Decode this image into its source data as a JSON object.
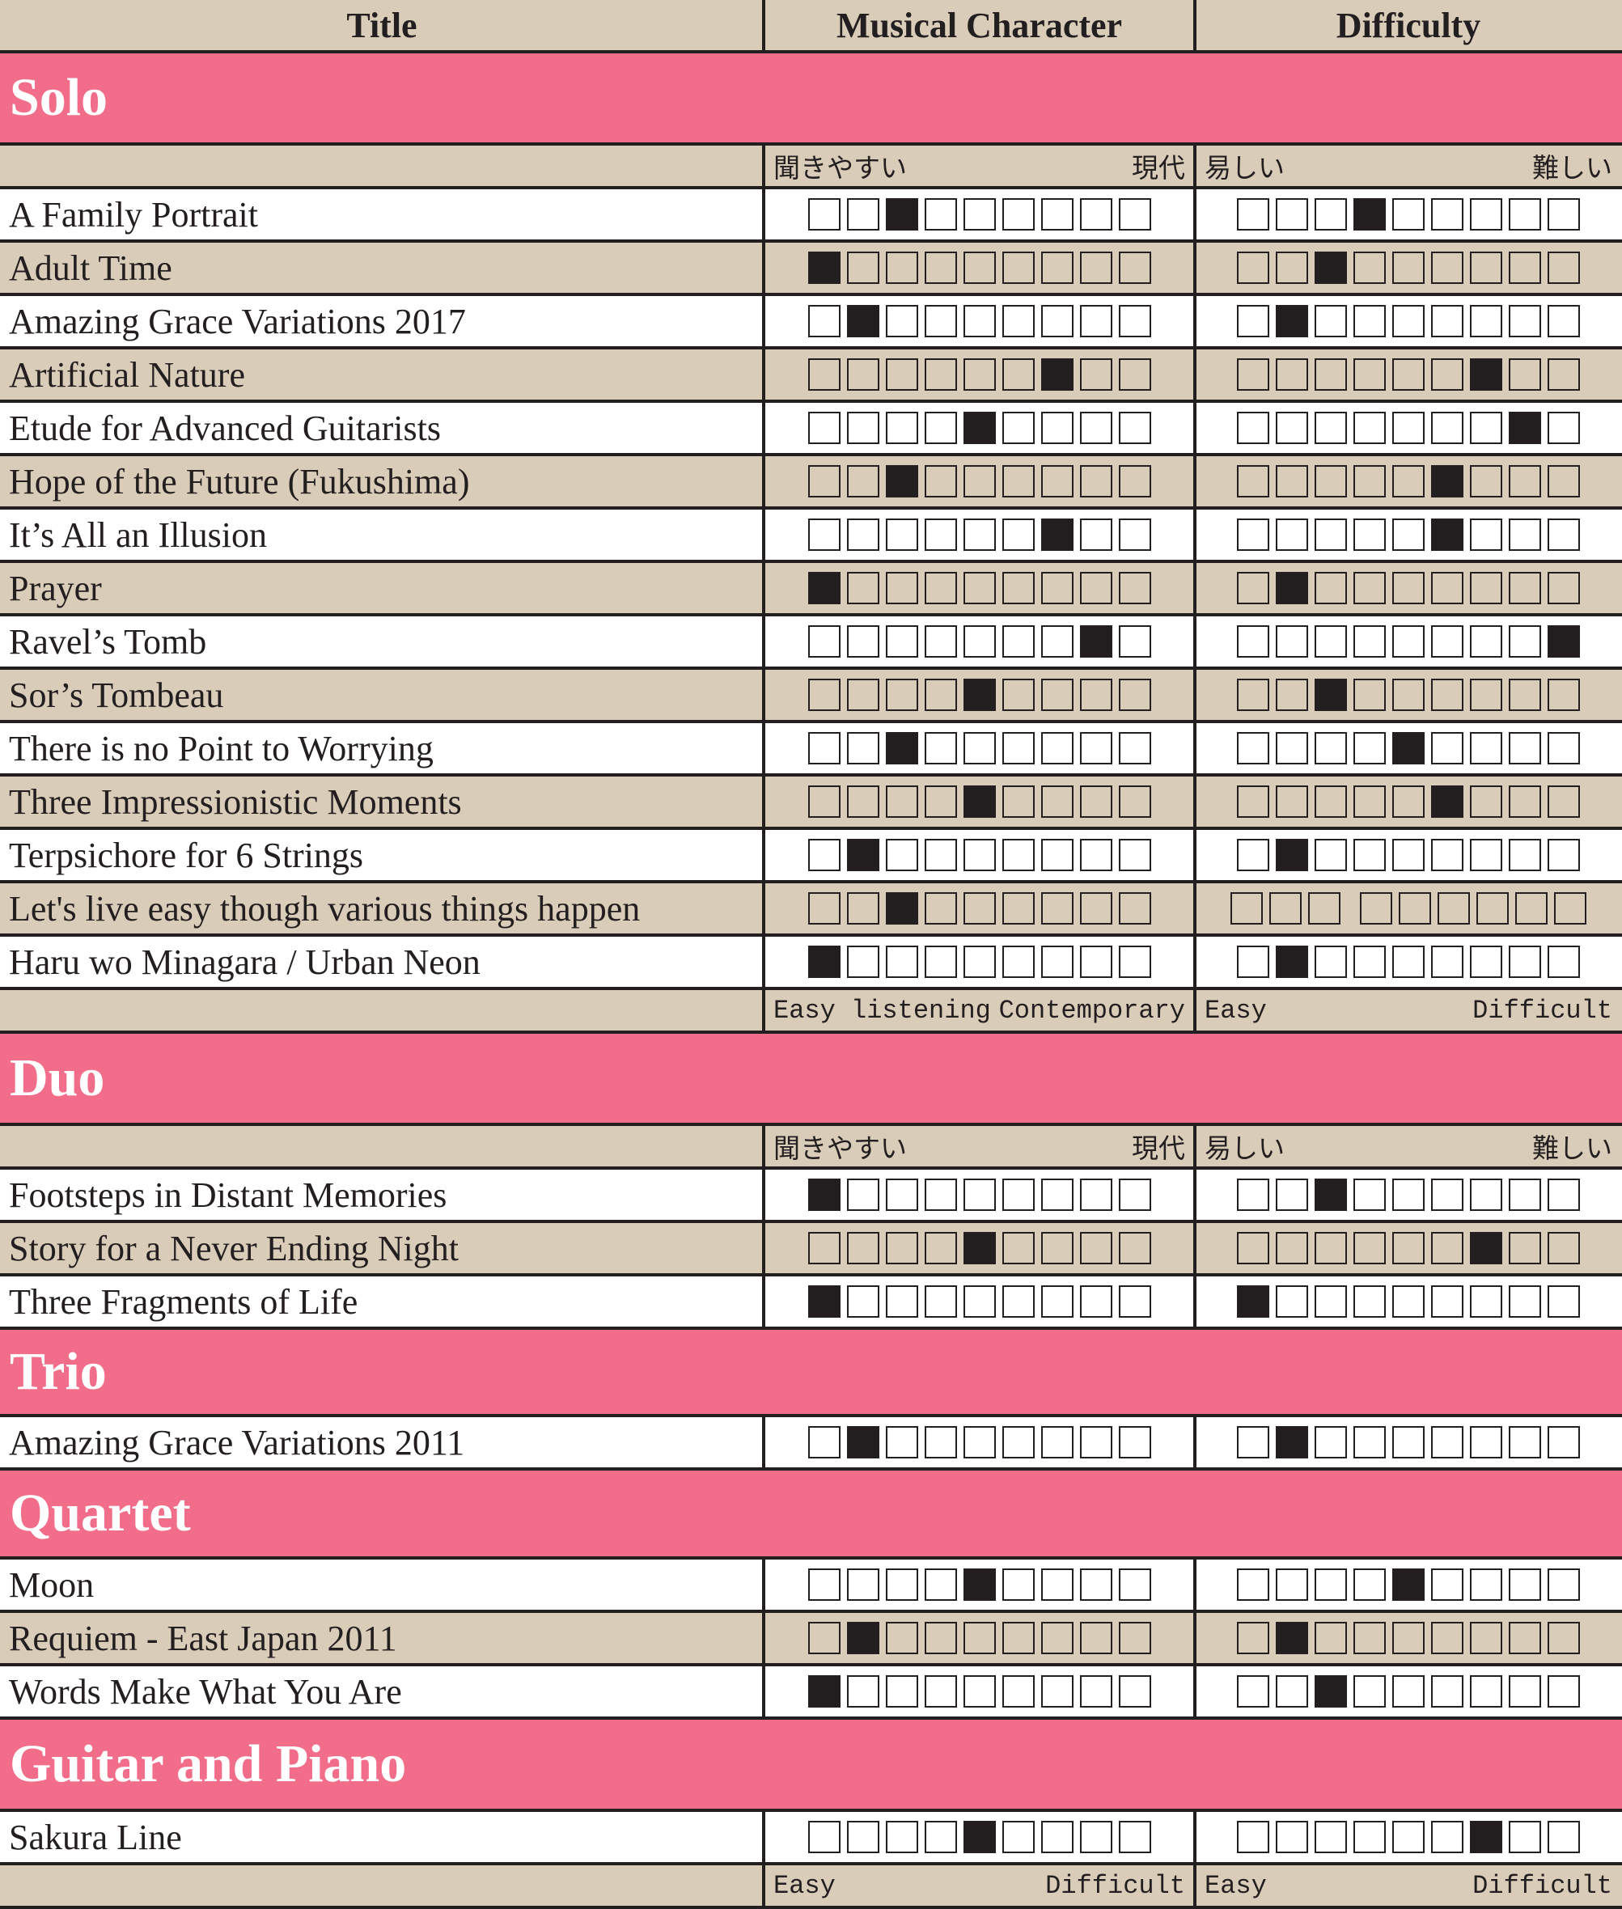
{
  "header": {
    "title": "Title",
    "character": "Musical Character",
    "difficulty": "Difficulty"
  },
  "scale_labels": {
    "character_jp": {
      "left": "聞きやすい",
      "right": "現代"
    },
    "difficulty_jp": {
      "left": "易しい",
      "right": "難しい"
    },
    "character_en": {
      "left": "Easy listening",
      "right": "Contemporary"
    },
    "difficulty_en": {
      "left": "Easy",
      "right": "Difficult"
    },
    "final_left": {
      "left": "Easy",
      "right": "Difficult"
    },
    "final_right": {
      "left": "Easy",
      "right": "Difficult"
    }
  },
  "scale_max": 9,
  "colors": {
    "section": "#f26d89",
    "tan": "#d9ccb8",
    "ink": "#231f20",
    "white": "#ffffff"
  },
  "sections": [
    {
      "name": "Solo",
      "pieces": [
        {
          "title": "A Family Portrait",
          "character": 3,
          "difficulty": 4
        },
        {
          "title": "Adult Time",
          "character": 1,
          "difficulty": 3
        },
        {
          "title": "Amazing Grace Variations 2017",
          "character": 2,
          "difficulty": 2
        },
        {
          "title": "Artificial Nature",
          "character": 7,
          "difficulty": 7
        },
        {
          "title": "Etude for Advanced Guitarists",
          "character": 5,
          "difficulty": 8
        },
        {
          "title": "Hope of the Future (Fukushima)",
          "character": 3,
          "difficulty": 6
        },
        {
          "title": "It’s All an Illusion",
          "character": 7,
          "difficulty": 6
        },
        {
          "title": "Prayer",
          "character": 1,
          "difficulty": 2
        },
        {
          "title": "Ravel’s Tomb",
          "character": 8,
          "difficulty": 9
        },
        {
          "title": "Sor’s Tombeau",
          "character": 5,
          "difficulty": 3
        },
        {
          "title": "There is no Point to Worrying",
          "character": 3,
          "difficulty": 5
        },
        {
          "title": "Three Impressionistic Moments",
          "character": 5,
          "difficulty": 6
        },
        {
          "title": "Terpsichore for 6 Strings",
          "character": 2,
          "difficulty": 2
        },
        {
          "title": "Let's live easy though various things happen",
          "character": 3,
          "difficulty": null
        },
        {
          "title": "Haru wo Minagara / Urban Neon",
          "character": 1,
          "difficulty": 2
        }
      ]
    },
    {
      "name": "Duo",
      "pieces": [
        {
          "title": "Footsteps in Distant Memories",
          "character": 1,
          "difficulty": 3
        },
        {
          "title": "Story for a Never Ending Night",
          "character": 5,
          "difficulty": 7
        },
        {
          "title": "Three Fragments of Life",
          "character": 1,
          "difficulty": 1
        }
      ]
    },
    {
      "name": "Trio",
      "pieces": [
        {
          "title": "Amazing Grace Variations 2011",
          "character": 2,
          "difficulty": 2
        }
      ]
    },
    {
      "name": "Quartet",
      "pieces": [
        {
          "title": "Moon",
          "character": 5,
          "difficulty": 5
        },
        {
          "title": "Requiem - East Japan 2011",
          "character": 2,
          "difficulty": 2
        },
        {
          "title": "Words Make What You Are",
          "character": 1,
          "difficulty": 3
        }
      ]
    },
    {
      "name": "Guitar and Piano",
      "pieces": [
        {
          "title": "Sakura Line",
          "character": 5,
          "difficulty": 7
        }
      ]
    }
  ]
}
